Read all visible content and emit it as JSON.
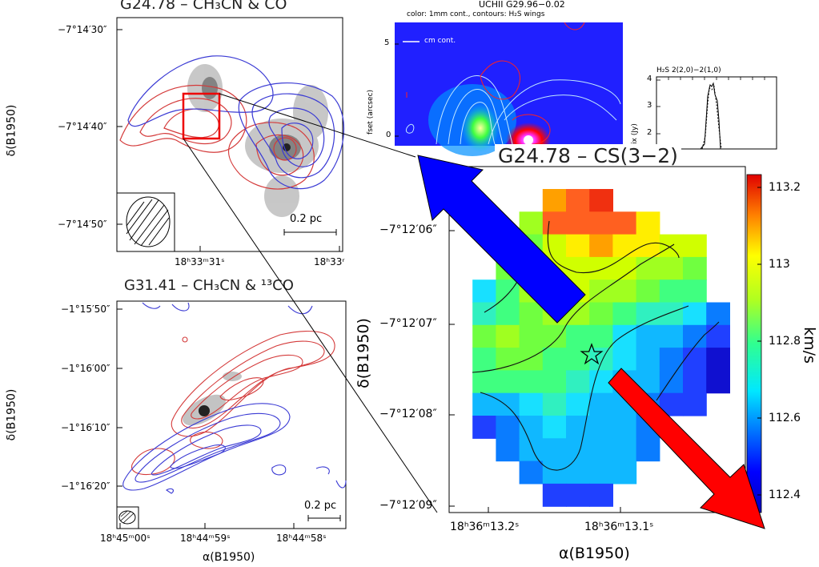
{
  "panel_a": {
    "title": "G24.78 – CH₃CN & CO",
    "ylabel": "δ(B1950)",
    "yticks": [
      "−7°14′30″",
      "−7°14′40″",
      "−7°14′50″"
    ],
    "xticks": [
      "18ʰ33ᵐ31ˢ",
      "18ʰ33ʳ"
    ],
    "scale_bar": "0.2 pc"
  },
  "panel_b": {
    "title": "G31.41 – CH₃CN & ¹³CO",
    "ylabel": "δ(B1950)",
    "xlabel": "α(B1950)",
    "yticks": [
      "−1°15′50″",
      "−1°16′00″",
      "−1°16′10″",
      "−1°16′20″"
    ],
    "xticks": [
      "18ʰ45ᵐ00ˢ",
      "18ʰ44ᵐ59ˢ",
      "18ʰ44ᵐ58ˢ"
    ],
    "scale_bar": "0.2 pc"
  },
  "panel_c": {
    "title": "UCHII G29.96−0.02",
    "subtitle": "color: 1mm cont., contours: H₂S wings",
    "legend": "cm cont.",
    "ylabel": "fset (arcsec)",
    "yticks": [
      "5",
      "0"
    ]
  },
  "panel_d": {
    "title": "H₂S 2(2,0)−2(1,0)",
    "ylabel": "ix (Jy)",
    "yticks": [
      "4",
      "3",
      "2"
    ]
  },
  "panel_e": {
    "title": "G24.78 – CS(3−2)",
    "ylabel": "δ(B1950)",
    "xlabel": "α(B1950)",
    "yticks": [
      "−7°12′06″",
      "−7°12′07″",
      "−7°12′08″",
      "−7°12′09″"
    ],
    "xticks": [
      "18ʰ36ᵐ13.2ˢ",
      "18ʰ36ᵐ13.1ˢ"
    ],
    "colorbar_label": "km/s",
    "colorbar_ticks": [
      "113.2",
      "113",
      "112.8",
      "112.6",
      "112.4"
    ],
    "colorbar_range": [
      112.3,
      113.25
    ]
  },
  "colors": {
    "red_contour": "#d43a3a",
    "blue_contour": "#3a3ad4",
    "outflow_red": "#ff0000",
    "outflow_blue": "#0000ff"
  }
}
